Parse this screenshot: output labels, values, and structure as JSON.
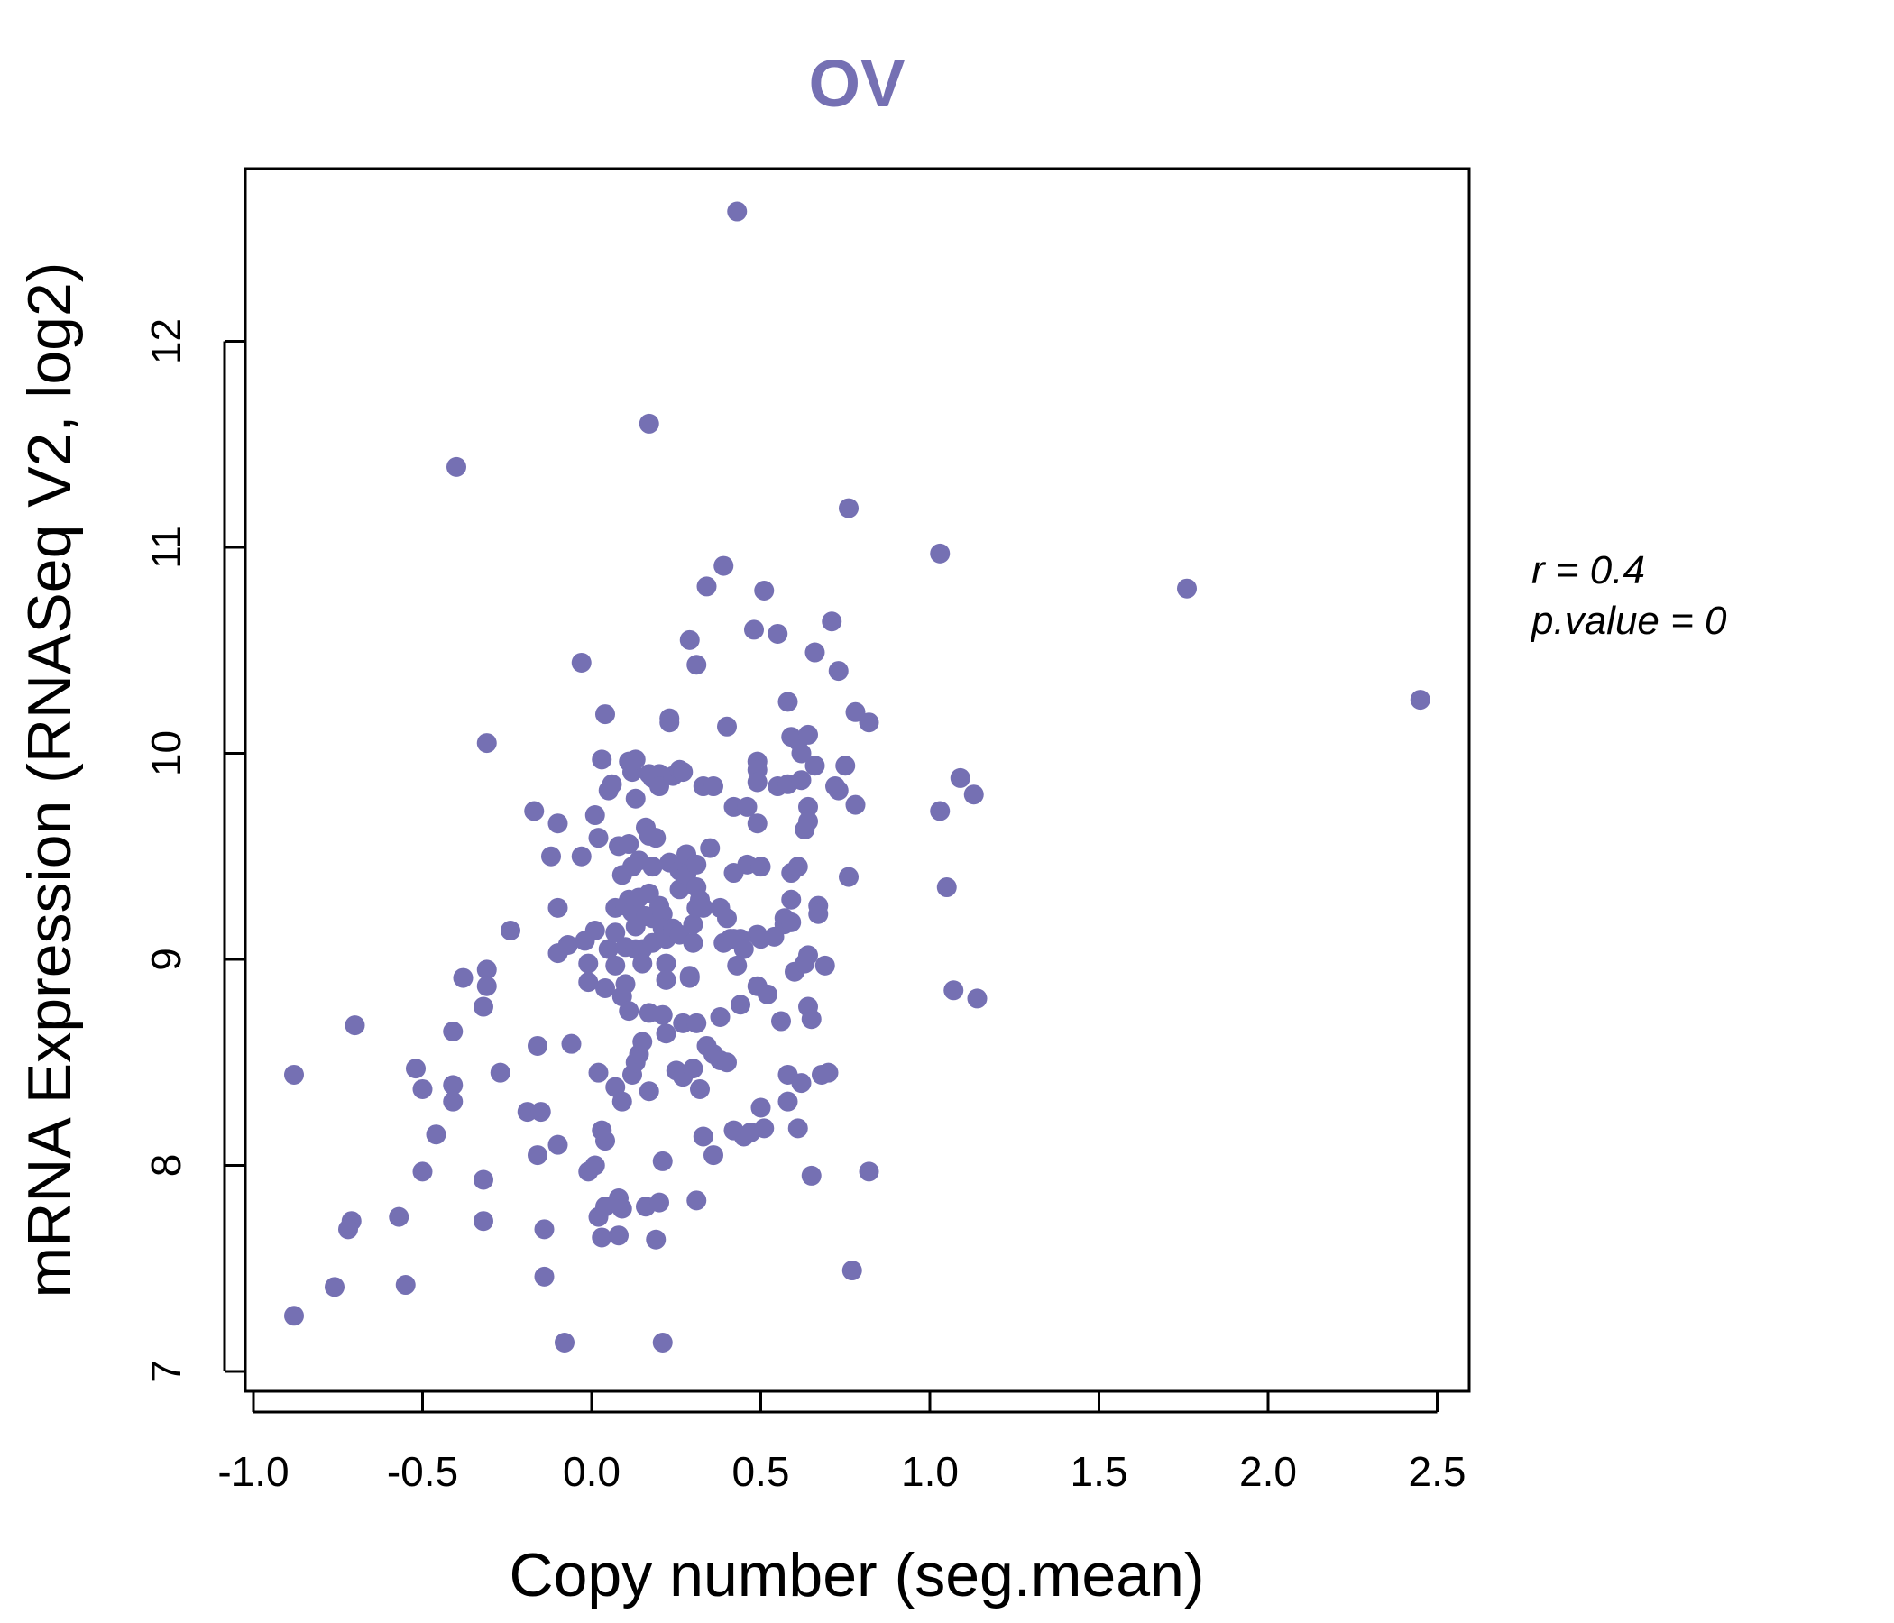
{
  "chart_data": {
    "type": "scatter",
    "title": "OV",
    "xlabel": "Copy number (seg.mean)",
    "ylabel": "mRNA Expression (RNASeq V2, log2)",
    "xlim": [
      -1.0,
      2.6
    ],
    "ylim": [
      7.0,
      12.8
    ],
    "x_ticks": [
      "-1.0",
      "-0.5",
      "0.0",
      "0.5",
      "1.0",
      "1.5",
      "2.0",
      "2.5"
    ],
    "y_ticks": [
      "7",
      "8",
      "9",
      "10",
      "11",
      "12"
    ],
    "grid": false,
    "annotations": {
      "r": "r = 0.4",
      "p": "p.value = 0"
    },
    "point_color": "#7570b3",
    "points": [
      [
        -0.88,
        8.44
      ],
      [
        -0.88,
        7.27
      ],
      [
        -0.76,
        7.41
      ],
      [
        -0.7,
        8.68
      ],
      [
        -0.71,
        7.73
      ],
      [
        -0.72,
        7.69
      ],
      [
        -0.57,
        7.75
      ],
      [
        -0.55,
        7.42
      ],
      [
        -0.52,
        8.47
      ],
      [
        -0.5,
        8.37
      ],
      [
        -0.5,
        7.97
      ],
      [
        -0.46,
        8.15
      ],
      [
        -0.41,
        8.39
      ],
      [
        -0.41,
        8.31
      ],
      [
        -0.41,
        8.65
      ],
      [
        -0.4,
        11.39
      ],
      [
        -0.38,
        8.91
      ],
      [
        -0.32,
        8.77
      ],
      [
        -0.32,
        7.93
      ],
      [
        -0.32,
        7.73
      ],
      [
        -0.31,
        10.05
      ],
      [
        -0.31,
        8.95
      ],
      [
        -0.31,
        8.87
      ],
      [
        -0.27,
        8.45
      ],
      [
        -0.24,
        9.14
      ],
      [
        -0.19,
        8.26
      ],
      [
        -0.17,
        9.72
      ],
      [
        -0.16,
        8.58
      ],
      [
        -0.16,
        8.05
      ],
      [
        -0.15,
        8.26
      ],
      [
        -0.14,
        7.69
      ],
      [
        -0.14,
        7.46
      ],
      [
        -0.12,
        9.5
      ],
      [
        -0.1,
        9.66
      ],
      [
        -0.1,
        9.25
      ],
      [
        -0.1,
        9.03
      ],
      [
        -0.1,
        8.1
      ],
      [
        -0.08,
        7.14
      ],
      [
        -0.07,
        9.07
      ],
      [
        -0.06,
        8.59
      ],
      [
        -0.03,
        10.44
      ],
      [
        -0.03,
        9.5
      ],
      [
        -0.02,
        9.09
      ],
      [
        -0.01,
        8.98
      ],
      [
        -0.01,
        8.89
      ],
      [
        -0.01,
        7.97
      ],
      [
        0.01,
        9.7
      ],
      [
        0.01,
        9.14
      ],
      [
        0.01,
        8.0
      ],
      [
        0.02,
        9.59
      ],
      [
        0.02,
        8.45
      ],
      [
        0.02,
        7.75
      ],
      [
        0.03,
        9.97
      ],
      [
        0.03,
        8.17
      ],
      [
        0.03,
        7.65
      ],
      [
        0.04,
        10.19
      ],
      [
        0.04,
        8.86
      ],
      [
        0.04,
        8.12
      ],
      [
        0.04,
        7.8
      ],
      [
        0.05,
        9.82
      ],
      [
        0.05,
        9.05
      ],
      [
        0.06,
        9.85
      ],
      [
        0.07,
        9.25
      ],
      [
        0.07,
        9.13
      ],
      [
        0.07,
        8.97
      ],
      [
        0.07,
        8.38
      ],
      [
        0.08,
        9.55
      ],
      [
        0.08,
        7.84
      ],
      [
        0.08,
        7.66
      ],
      [
        0.09,
        9.41
      ],
      [
        0.09,
        8.82
      ],
      [
        0.09,
        8.31
      ],
      [
        0.09,
        7.79
      ],
      [
        0.1,
        9.26
      ],
      [
        0.1,
        9.06
      ],
      [
        0.1,
        8.88
      ],
      [
        0.11,
        9.96
      ],
      [
        0.11,
        9.56
      ],
      [
        0.11,
        9.29
      ],
      [
        0.11,
        8.75
      ],
      [
        0.12,
        9.91
      ],
      [
        0.12,
        9.45
      ],
      [
        0.12,
        9.23
      ],
      [
        0.12,
        8.44
      ],
      [
        0.13,
        9.97
      ],
      [
        0.13,
        9.78
      ],
      [
        0.13,
        9.16
      ],
      [
        0.13,
        9.05
      ],
      [
        0.13,
        8.5
      ],
      [
        0.14,
        9.48
      ],
      [
        0.14,
        9.3
      ],
      [
        0.14,
        9.22
      ],
      [
        0.14,
        8.54
      ],
      [
        0.15,
        9.05
      ],
      [
        0.15,
        8.98
      ],
      [
        0.15,
        8.6
      ],
      [
        0.16,
        9.64
      ],
      [
        0.16,
        9.21
      ],
      [
        0.16,
        7.8
      ],
      [
        0.17,
        11.6
      ],
      [
        0.17,
        9.9
      ],
      [
        0.17,
        9.6
      ],
      [
        0.17,
        9.32
      ],
      [
        0.17,
        8.74
      ],
      [
        0.17,
        8.36
      ],
      [
        0.18,
        9.88
      ],
      [
        0.18,
        9.45
      ],
      [
        0.18,
        9.2
      ],
      [
        0.18,
        9.08
      ],
      [
        0.19,
        9.59
      ],
      [
        0.19,
        7.64
      ],
      [
        0.2,
        9.9
      ],
      [
        0.2,
        9.84
      ],
      [
        0.2,
        9.26
      ],
      [
        0.2,
        7.82
      ],
      [
        0.21,
        9.22
      ],
      [
        0.21,
        9.15
      ],
      [
        0.21,
        8.73
      ],
      [
        0.21,
        8.02
      ],
      [
        0.21,
        7.14
      ],
      [
        0.22,
        9.1
      ],
      [
        0.22,
        8.98
      ],
      [
        0.22,
        8.9
      ],
      [
        0.22,
        8.64
      ],
      [
        0.23,
        10.17
      ],
      [
        0.23,
        10.15
      ],
      [
        0.23,
        9.47
      ],
      [
        0.24,
        9.89
      ],
      [
        0.24,
        9.15
      ],
      [
        0.24,
        9.13
      ],
      [
        0.25,
        8.46
      ],
      [
        0.26,
        9.92
      ],
      [
        0.26,
        9.43
      ],
      [
        0.26,
        9.34
      ],
      [
        0.26,
        9.12
      ],
      [
        0.27,
        9.91
      ],
      [
        0.27,
        8.69
      ],
      [
        0.27,
        8.43
      ],
      [
        0.28,
        9.51
      ],
      [
        0.28,
        9.41
      ],
      [
        0.29,
        10.55
      ],
      [
        0.29,
        8.92
      ],
      [
        0.29,
        8.91
      ],
      [
        0.3,
        9.17
      ],
      [
        0.3,
        9.08
      ],
      [
        0.3,
        8.47
      ],
      [
        0.31,
        10.43
      ],
      [
        0.31,
        9.46
      ],
      [
        0.31,
        9.35
      ],
      [
        0.31,
        9.25
      ],
      [
        0.31,
        8.69
      ],
      [
        0.31,
        7.83
      ],
      [
        0.32,
        9.29
      ],
      [
        0.32,
        8.37
      ],
      [
        0.33,
        9.84
      ],
      [
        0.33,
        9.25
      ],
      [
        0.33,
        8.14
      ],
      [
        0.34,
        10.81
      ],
      [
        0.34,
        8.58
      ],
      [
        0.35,
        9.54
      ],
      [
        0.36,
        9.84
      ],
      [
        0.36,
        8.54
      ],
      [
        0.36,
        8.05
      ],
      [
        0.38,
        9.25
      ],
      [
        0.38,
        8.72
      ],
      [
        0.38,
        8.51
      ],
      [
        0.39,
        10.91
      ],
      [
        0.39,
        9.08
      ],
      [
        0.4,
        10.13
      ],
      [
        0.4,
        9.2
      ],
      [
        0.4,
        8.5
      ],
      [
        0.41,
        9.1
      ],
      [
        0.42,
        9.74
      ],
      [
        0.42,
        9.42
      ],
      [
        0.42,
        9.1
      ],
      [
        0.42,
        8.17
      ],
      [
        0.43,
        12.63
      ],
      [
        0.43,
        8.97
      ],
      [
        0.44,
        9.1
      ],
      [
        0.44,
        8.78
      ],
      [
        0.45,
        9.05
      ],
      [
        0.45,
        8.14
      ],
      [
        0.46,
        9.74
      ],
      [
        0.46,
        9.46
      ],
      [
        0.47,
        8.16
      ],
      [
        0.48,
        10.6
      ],
      [
        0.49,
        9.96
      ],
      [
        0.49,
        9.92
      ],
      [
        0.49,
        9.86
      ],
      [
        0.49,
        9.66
      ],
      [
        0.49,
        9.12
      ],
      [
        0.49,
        8.87
      ],
      [
        0.5,
        9.45
      ],
      [
        0.5,
        9.1
      ],
      [
        0.5,
        8.28
      ],
      [
        0.51,
        10.79
      ],
      [
        0.51,
        8.18
      ],
      [
        0.52,
        8.83
      ],
      [
        0.54,
        9.11
      ],
      [
        0.55,
        10.58
      ],
      [
        0.55,
        9.84
      ],
      [
        0.56,
        8.7
      ],
      [
        0.57,
        9.17
      ],
      [
        0.57,
        9.2
      ],
      [
        0.58,
        10.25
      ],
      [
        0.58,
        9.85
      ],
      [
        0.58,
        8.44
      ],
      [
        0.58,
        8.31
      ],
      [
        0.59,
        10.08
      ],
      [
        0.59,
        9.42
      ],
      [
        0.59,
        9.29
      ],
      [
        0.59,
        9.18
      ],
      [
        0.6,
        8.94
      ],
      [
        0.61,
        10.06
      ],
      [
        0.61,
        9.45
      ],
      [
        0.61,
        8.18
      ],
      [
        0.62,
        10.0
      ],
      [
        0.62,
        9.87
      ],
      [
        0.62,
        8.4
      ],
      [
        0.63,
        9.63
      ],
      [
        0.63,
        8.98
      ],
      [
        0.64,
        10.09
      ],
      [
        0.64,
        9.74
      ],
      [
        0.64,
        9.67
      ],
      [
        0.64,
        9.02
      ],
      [
        0.64,
        8.77
      ],
      [
        0.65,
        8.71
      ],
      [
        0.65,
        7.95
      ],
      [
        0.66,
        10.49
      ],
      [
        0.66,
        9.94
      ],
      [
        0.67,
        9.26
      ],
      [
        0.67,
        9.22
      ],
      [
        0.68,
        8.44
      ],
      [
        0.69,
        8.97
      ],
      [
        0.7,
        8.45
      ],
      [
        0.71,
        10.64
      ],
      [
        0.72,
        9.84
      ],
      [
        0.73,
        10.4
      ],
      [
        0.73,
        9.82
      ],
      [
        0.75,
        9.94
      ],
      [
        0.76,
        11.19
      ],
      [
        0.76,
        9.4
      ],
      [
        0.77,
        7.49
      ],
      [
        0.78,
        10.2
      ],
      [
        0.78,
        9.75
      ],
      [
        0.82,
        10.15
      ],
      [
        0.82,
        7.97
      ],
      [
        1.03,
        10.97
      ],
      [
        1.03,
        9.72
      ],
      [
        1.05,
        9.35
      ],
      [
        1.07,
        8.85
      ],
      [
        1.09,
        9.88
      ],
      [
        1.13,
        9.8
      ],
      [
        1.14,
        8.81
      ],
      [
        1.76,
        10.8
      ],
      [
        2.45,
        10.26
      ]
    ]
  }
}
